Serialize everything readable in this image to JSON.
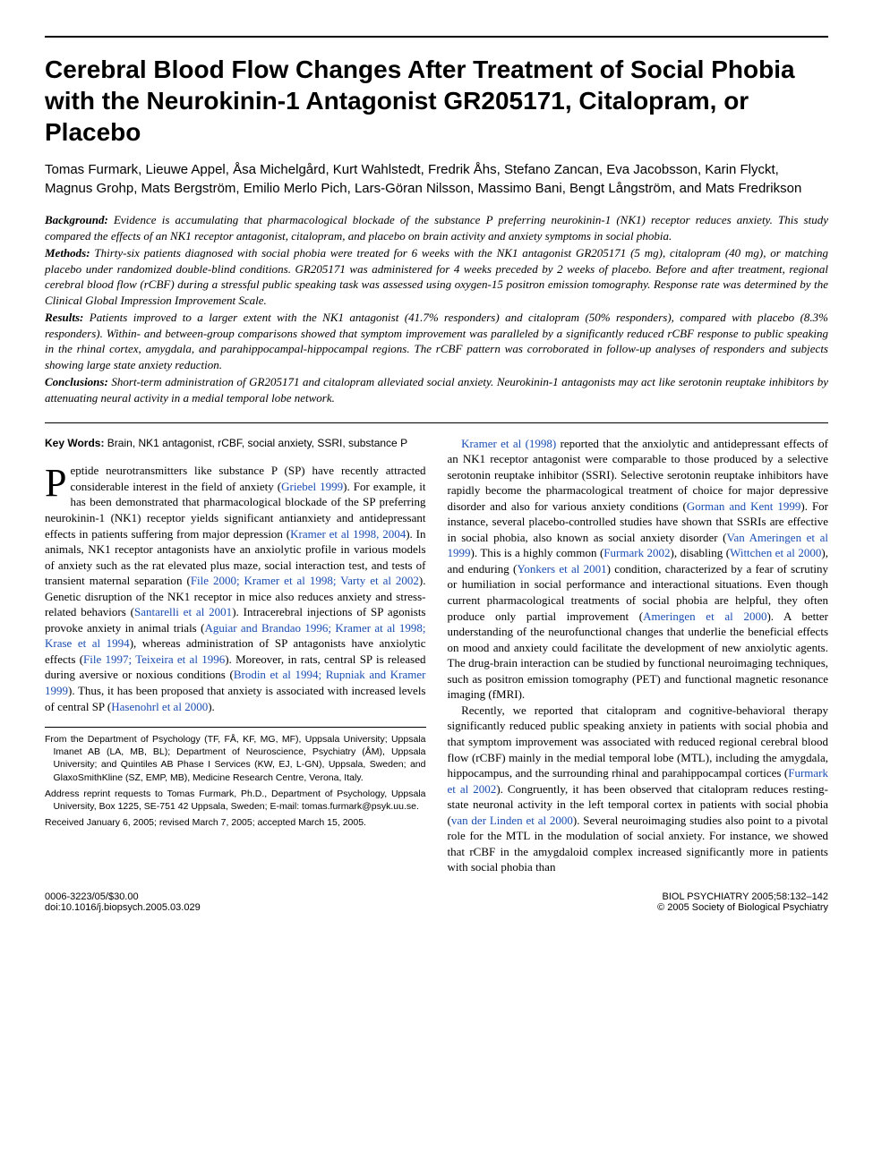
{
  "title": "Cerebral Blood Flow Changes After Treatment of Social Phobia with the Neurokinin-1 Antagonist GR205171, Citalopram, or Placebo",
  "authors": "Tomas Furmark, Lieuwe Appel, Åsa Michelgård, Kurt Wahlstedt, Fredrik Åhs, Stefano Zancan, Eva Jacobsson, Karin Flyckt, Magnus Grohp, Mats Bergström, Emilio Merlo Pich, Lars-Göran Nilsson, Massimo Bani, Bengt Långström, and Mats Fredrikson",
  "abstract": {
    "background_label": "Background:",
    "background_text": " Evidence is accumulating that pharmacological blockade of the substance P preferring neurokinin-1 (NK1) receptor reduces anxiety. This study compared the effects of an NK1 receptor antagonist, citalopram, and placebo on brain activity and anxiety symptoms in social phobia.",
    "methods_label": "Methods:",
    "methods_text": " Thirty-six patients diagnosed with social phobia were treated for 6 weeks with the NK1 antagonist GR205171 (5 mg), citalopram (40 mg), or matching placebo under randomized double-blind conditions. GR205171 was administered for 4 weeks preceded by 2 weeks of placebo. Before and after treatment, regional cerebral blood flow (rCBF) during a stressful public speaking task was assessed using oxygen-15 positron emission tomography. Response rate was determined by the Clinical Global Impression Improvement Scale.",
    "results_label": "Results:",
    "results_text": " Patients improved to a larger extent with the NK1 antagonist (41.7% responders) and citalopram (50% responders), compared with placebo (8.3% responders). Within- and between-group comparisons showed that symptom improvement was paralleled by a significantly reduced rCBF response to public speaking in the rhinal cortex, amygdala, and parahippocampal-hippocampal regions. The rCBF pattern was corroborated in follow-up analyses of responders and subjects showing large state anxiety reduction.",
    "conclusions_label": "Conclusions:",
    "conclusions_text": " Short-term administration of GR205171 and citalopram alleviated social anxiety. Neurokinin-1 antagonists may act like serotonin reuptake inhibitors by attenuating neural activity in a medial temporal lobe network."
  },
  "keywords_label": "Key Words:",
  "keywords_text": " Brain, NK1 antagonist, rCBF, social anxiety, SSRI, substance P",
  "col_left": {
    "dropcap": "P",
    "p1a": "eptide neurotransmitters like substance P (SP) have recently attracted considerable interest in the field of anxiety (",
    "c1": "Griebel 1999",
    "p1b": "). For example, it has been demonstrated that pharmacological blockade of the SP preferring neurokinin-1 (NK1) receptor yields significant antianxiety and antidepressant effects in patients suffering from major depression (",
    "c2": "Kramer et al 1998, 2004",
    "p1c": "). In animals, NK1 receptor antagonists have an anxiolytic profile in various models of anxiety such as the rat elevated plus maze, social interaction test, and tests of transient maternal separation (",
    "c3": "File 2000; Kramer et al 1998; Varty et al 2002",
    "p1d": "). Genetic disruption of the NK1 receptor in mice also reduces anxiety and stress-related behaviors (",
    "c4": "Santarelli et al 2001",
    "p1e": "). Intracerebral injections of SP agonists provoke anxiety in animal trials (",
    "c5": "Aguiar and Brandao 1996; Kramer at al 1998; Krase et al 1994",
    "p1f": "), whereas administration of SP antagonists have anxiolytic effects (",
    "c6": "File 1997; Teixeira et al 1996",
    "p1g": "). Moreover, in rats, central SP is released during aversive or noxious conditions (",
    "c7": "Brodin et al 1994; Rupniak and Kramer 1999",
    "p1h": "). Thus, it has been proposed that anxiety is associated with increased levels of central SP (",
    "c8": "Hasenohrl et al 2000",
    "p1i": ")."
  },
  "footnotes": {
    "f1": "From the Department of Psychology (TF, FÅ, KF, MG, MF), Uppsala University; Uppsala Imanet AB (LA, MB, BL); Department of Neuroscience, Psychiatry (ÅM), Uppsala University; and Quintiles AB Phase I Services (KW, EJ, L-GN), Uppsala, Sweden; and GlaxoSmithKline (SZ, EMP, MB), Medicine Research Centre, Verona, Italy.",
    "f2": "Address reprint requests to Tomas Furmark, Ph.D., Department of Psychology, Uppsala University, Box 1225, SE-751 42 Uppsala, Sweden; E-mail: tomas.furmark@psyk.uu.se.",
    "f3": "Received January 6, 2005; revised March 7, 2005; accepted March 15, 2005."
  },
  "col_right": {
    "p1a": "",
    "c1": "Kramer et al (1998)",
    "p1b": " reported that the anxiolytic and antidepressant effects of an NK1 receptor antagonist were comparable to those produced by a selective serotonin reuptake inhibitor (SSRI). Selective serotonin reuptake inhibitors have rapidly become the pharmacological treatment of choice for major depressive disorder and also for various anxiety conditions (",
    "c2": "Gorman and Kent 1999",
    "p1c": "). For instance, several placebo-controlled studies have shown that SSRIs are effective in social phobia, also known as social anxiety disorder (",
    "c3": "Van Ameringen et al 1999",
    "p1d": "). This is a highly common (",
    "c4": "Furmark 2002",
    "p1e": "), disabling (",
    "c5": "Wittchen et al 2000",
    "p1f": "), and enduring (",
    "c6": "Yonkers et al 2001",
    "p1g": ") condition, characterized by a fear of scrutiny or humiliation in social performance and interactional situations. Even though current pharmacological treatments of social phobia are helpful, they often produce only partial improvement (",
    "c7": "Ameringen et al 2000",
    "p1h": "). A better understanding of the neurofunctional changes that underlie the beneficial effects on mood and anxiety could facilitate the development of new anxiolytic agents. The drug-brain interaction can be studied by functional neuroimaging techniques, such as positron emission tomography (PET) and functional magnetic resonance imaging (fMRI).",
    "p2a": "Recently, we reported that citalopram and cognitive-behavioral therapy significantly reduced public speaking anxiety in patients with social phobia and that symptom improvement was associated with reduced regional cerebral blood flow (rCBF) mainly in the medial temporal lobe (MTL), including the amygdala, hippocampus, and the surrounding rhinal and parahippocampal cortices (",
    "c8": "Furmark et al 2002",
    "p2b": "). Congruently, it has been observed that citalopram reduces resting-state neuronal activity in the left temporal cortex in patients with social phobia (",
    "c9": "van der Linden et al 2000",
    "p2c": "). Several neuroimaging studies also point to a pivotal role for the MTL in the modulation of social anxiety. For instance, we showed that rCBF in the amygdaloid complex increased significantly more in patients with social phobia than"
  },
  "bottom": {
    "left1": "0006-3223/05/$30.00",
    "left2": "doi:10.1016/j.biopsych.2005.03.029",
    "right1": "BIOL PSYCHIATRY 2005;58:132–142",
    "right2": "© 2005 Society of Biological Psychiatry"
  },
  "colors": {
    "cite": "#1a4db3",
    "text": "#000000",
    "bg": "#ffffff"
  }
}
